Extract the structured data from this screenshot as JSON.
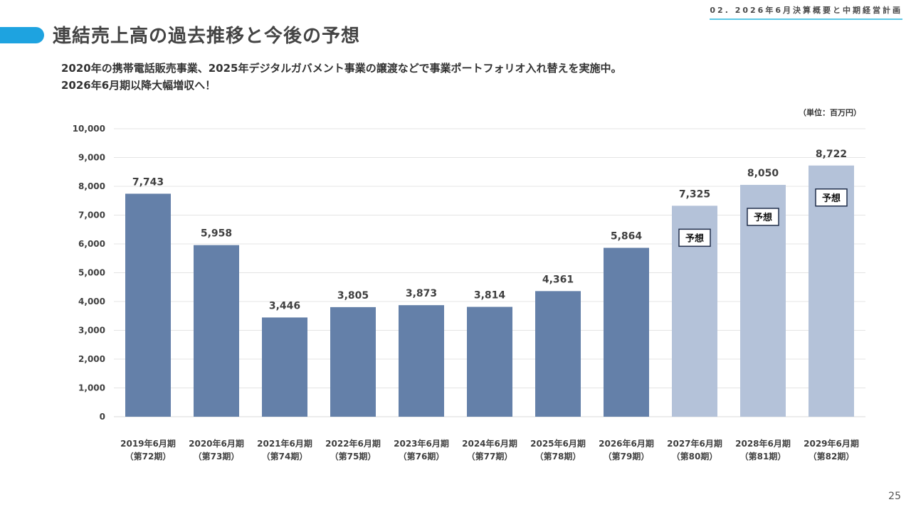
{
  "header": {
    "section_label": "02. 2026年6月決算概要と中期経営計画",
    "title": "連結売上高の過去推移と今後の予想",
    "subtitle_lines": [
      "2020年の携帯電話販売事業、2025年デジタルガバメント事業の譲渡などで事業ポートフォリオ入れ替えを実施中。",
      "2026年6月期以降大幅増収へ！"
    ],
    "accent_color": "#1ea3e0"
  },
  "unit_label": "（単位：百万円）",
  "page_number": "25",
  "chart_data": {
    "type": "bar",
    "categories": [
      [
        "2019年6月期",
        "（第72期）"
      ],
      [
        "2020年6月期",
        "（第73期）"
      ],
      [
        "2021年6月期",
        "（第74期）"
      ],
      [
        "2022年6月期",
        "（第75期）"
      ],
      [
        "2023年6月期",
        "（第76期）"
      ],
      [
        "2024年6月期",
        "（第77期）"
      ],
      [
        "2025年6月期",
        "（第78期）"
      ],
      [
        "2026年6月期",
        "（第79期）"
      ],
      [
        "2027年6月期",
        "（第80期）"
      ],
      [
        "2028年6月期",
        "（第81期）"
      ],
      [
        "2029年6月期",
        "（第82期）"
      ]
    ],
    "values": [
      7743,
      5958,
      3446,
      3805,
      3873,
      3814,
      4361,
      5864,
      7325,
      8050,
      8722
    ],
    "data_labels": [
      "7,743",
      "5,958",
      "3,446",
      "3,805",
      "3,873",
      "3,814",
      "4,361",
      "5,864",
      "7,325",
      "8,050",
      "8,722"
    ],
    "forecast": [
      false,
      false,
      false,
      false,
      false,
      false,
      false,
      false,
      true,
      true,
      true
    ],
    "forecast_tag": "予想",
    "ylim": [
      0,
      10000
    ],
    "yticks": [
      0,
      1000,
      2000,
      3000,
      4000,
      5000,
      6000,
      7000,
      8000,
      9000,
      10000
    ],
    "ytick_labels": [
      "0",
      "1,000",
      "2,000",
      "3,000",
      "4,000",
      "5,000",
      "6,000",
      "7,000",
      "8,000",
      "9,000",
      "10,000"
    ],
    "grid": true,
    "colors": {
      "actual": "#6480a9",
      "forecast": "#b4c2d9",
      "grid": "#e4e4e4",
      "baseline": "#d9d9d9"
    }
  }
}
